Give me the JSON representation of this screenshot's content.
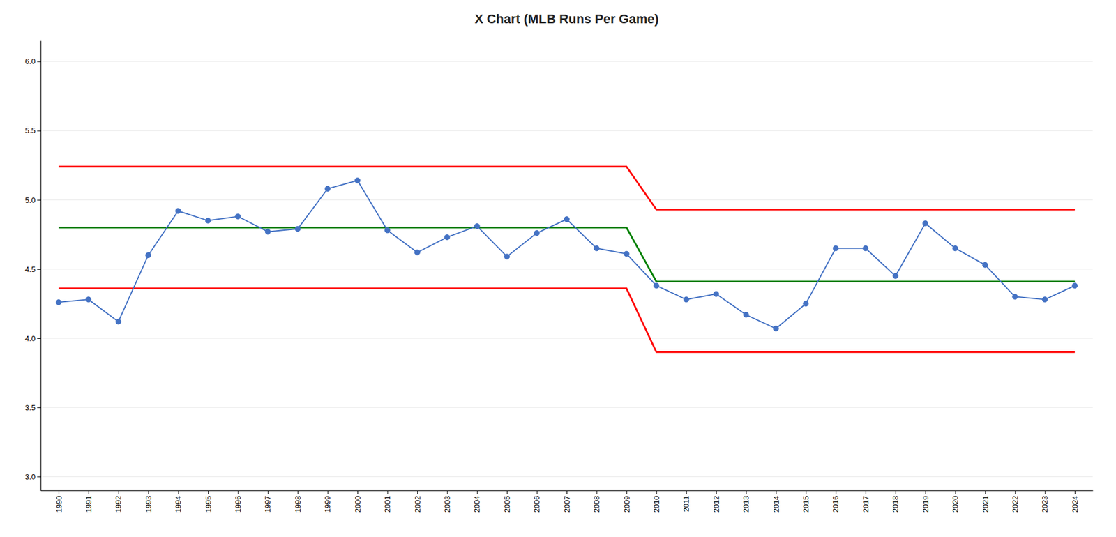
{
  "chart_data": {
    "type": "line",
    "title": "X Chart (MLB Runs Per Game)",
    "x": [
      1990,
      1991,
      1992,
      1993,
      1994,
      1995,
      1996,
      1997,
      1998,
      1999,
      2000,
      2001,
      2002,
      2003,
      2004,
      2005,
      2006,
      2007,
      2008,
      2009,
      2010,
      2011,
      2012,
      2013,
      2014,
      2015,
      2016,
      2017,
      2018,
      2019,
      2020,
      2021,
      2022,
      2023,
      2024
    ],
    "series": [
      {
        "color": "#4472C4",
        "marker": "circle",
        "values": [
          4.26,
          4.28,
          4.12,
          4.6,
          4.92,
          4.85,
          4.88,
          4.77,
          4.79,
          5.08,
          5.14,
          4.78,
          4.62,
          4.73,
          4.81,
          4.59,
          4.76,
          4.86,
          4.65,
          4.61,
          4.38,
          4.28,
          4.32,
          4.17,
          4.07,
          4.25,
          4.65,
          4.65,
          4.45,
          4.83,
          4.65,
          4.53,
          4.3,
          4.28,
          4.38
        ]
      },
      {
        "color": "#FF0000",
        "values": [
          5.24,
          5.24,
          5.24,
          5.24,
          5.24,
          5.24,
          5.24,
          5.24,
          5.24,
          5.24,
          5.24,
          5.24,
          5.24,
          5.24,
          5.24,
          5.24,
          5.24,
          5.24,
          5.24,
          5.24,
          4.93,
          4.93,
          4.93,
          4.93,
          4.93,
          4.93,
          4.93,
          4.93,
          4.93,
          4.93,
          4.93,
          4.93,
          4.93,
          4.93,
          4.93
        ]
      },
      {
        "color": "#008000",
        "values": [
          4.8,
          4.8,
          4.8,
          4.8,
          4.8,
          4.8,
          4.8,
          4.8,
          4.8,
          4.8,
          4.8,
          4.8,
          4.8,
          4.8,
          4.8,
          4.8,
          4.8,
          4.8,
          4.8,
          4.8,
          4.41,
          4.41,
          4.41,
          4.41,
          4.41,
          4.41,
          4.41,
          4.41,
          4.41,
          4.41,
          4.41,
          4.41,
          4.41,
          4.41,
          4.41
        ]
      },
      {
        "color": "#FF0000",
        "values": [
          4.36,
          4.36,
          4.36,
          4.36,
          4.36,
          4.36,
          4.36,
          4.36,
          4.36,
          4.36,
          4.36,
          4.36,
          4.36,
          4.36,
          4.36,
          4.36,
          4.36,
          4.36,
          4.36,
          4.36,
          3.9,
          3.9,
          3.9,
          3.9,
          3.9,
          3.9,
          3.9,
          3.9,
          3.9,
          3.9,
          3.9,
          3.9,
          3.9,
          3.9,
          3.9
        ]
      }
    ],
    "xlim": [
      1989.4,
      2024.6
    ],
    "xticks": [
      1990,
      1991,
      1992,
      1993,
      1994,
      1995,
      1996,
      1997,
      1998,
      1999,
      2000,
      2001,
      2002,
      2003,
      2004,
      2005,
      2006,
      2007,
      2008,
      2009,
      2010,
      2011,
      2012,
      2013,
      2014,
      2015,
      2016,
      2017,
      2018,
      2019,
      2020,
      2021,
      2022,
      2023,
      2024
    ],
    "ylim": [
      2.9,
      6.15
    ],
    "yticks": [
      {
        "value": 3.0,
        "label": "3.0"
      },
      3.5,
      {
        "value": 4.0,
        "label": "4.0"
      },
      4.5,
      {
        "value": 5.0,
        "label": "5.0"
      },
      5.5,
      {
        "value": 6.0,
        "label": "6.0"
      }
    ],
    "grid": "y"
  }
}
